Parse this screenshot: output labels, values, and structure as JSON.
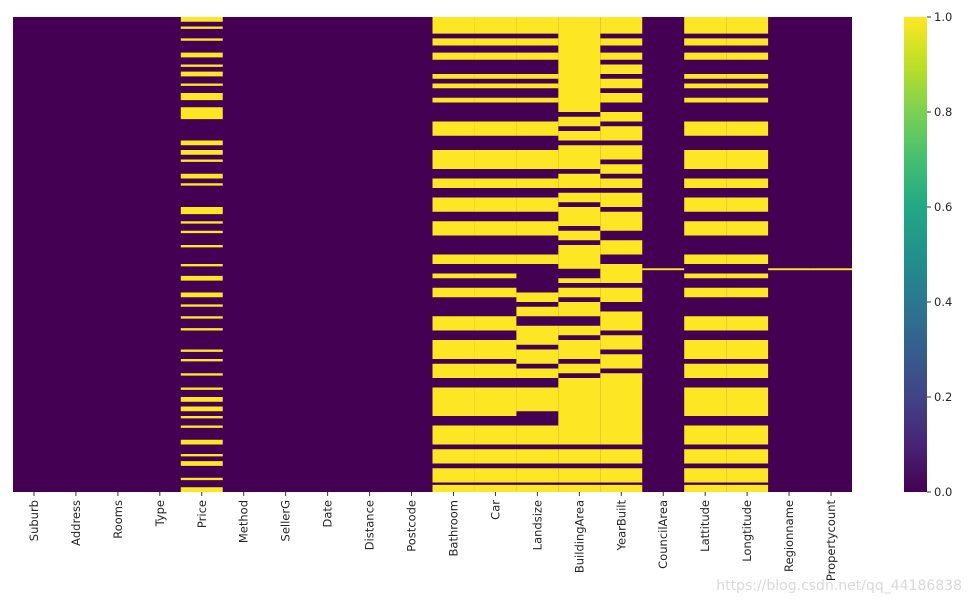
{
  "chart_data": {
    "type": "heatmap",
    "title": "",
    "xlabel": "",
    "ylabel": "",
    "columns": [
      "Suburb",
      "Address",
      "Rooms",
      "Type",
      "Price",
      "Method",
      "SellerG",
      "Date",
      "Distance",
      "Postcode",
      "Bathroom",
      "Car",
      "Landsize",
      "BuildingArea",
      "YearBuilt",
      "CouncilArea",
      "Lattitude",
      "Longtitude",
      "Regionname",
      "Propertycount"
    ],
    "values_meaning": "1 = missing value (yellow), 0 = present (purple); rows = records",
    "missing_bands": {
      "Price": [
        [
          0.0,
          0.01
        ],
        [
          0.02,
          0.025
        ],
        [
          0.045,
          0.05
        ],
        [
          0.075,
          0.085
        ],
        [
          0.1,
          0.105
        ],
        [
          0.115,
          0.125
        ],
        [
          0.14,
          0.145
        ],
        [
          0.16,
          0.175
        ],
        [
          0.19,
          0.2
        ],
        [
          0.2,
          0.215
        ],
        [
          0.26,
          0.27
        ],
        [
          0.28,
          0.29
        ],
        [
          0.3,
          0.305
        ],
        [
          0.33,
          0.34
        ],
        [
          0.35,
          0.355
        ],
        [
          0.4,
          0.415
        ],
        [
          0.43,
          0.435
        ],
        [
          0.45,
          0.455
        ],
        [
          0.48,
          0.485
        ],
        [
          0.52,
          0.525
        ],
        [
          0.545,
          0.555
        ],
        [
          0.58,
          0.59
        ],
        [
          0.605,
          0.61
        ],
        [
          0.63,
          0.635
        ],
        [
          0.655,
          0.66
        ],
        [
          0.7,
          0.705
        ],
        [
          0.72,
          0.725
        ],
        [
          0.75,
          0.755
        ],
        [
          0.78,
          0.785
        ],
        [
          0.8,
          0.81
        ],
        [
          0.82,
          0.83
        ],
        [
          0.84,
          0.845
        ],
        [
          0.86,
          0.865
        ],
        [
          0.89,
          0.9
        ],
        [
          0.92,
          0.925
        ],
        [
          0.935,
          0.945
        ],
        [
          0.97,
          0.975
        ],
        [
          0.99,
          1.0
        ]
      ],
      "Bathroom": [
        [
          0.0,
          0.035
        ],
        [
          0.045,
          0.06
        ],
        [
          0.075,
          0.09
        ],
        [
          0.12,
          0.13
        ],
        [
          0.14,
          0.15
        ],
        [
          0.17,
          0.18
        ],
        [
          0.22,
          0.25
        ],
        [
          0.28,
          0.32
        ],
        [
          0.34,
          0.36
        ],
        [
          0.38,
          0.41
        ],
        [
          0.43,
          0.46
        ],
        [
          0.5,
          0.52
        ],
        [
          0.54,
          0.55
        ],
        [
          0.57,
          0.59
        ],
        [
          0.63,
          0.66
        ],
        [
          0.68,
          0.72
        ],
        [
          0.73,
          0.76
        ],
        [
          0.78,
          0.84
        ],
        [
          0.86,
          0.9
        ],
        [
          0.91,
          0.94
        ],
        [
          0.95,
          0.98
        ],
        [
          0.985,
          1.0
        ]
      ],
      "Car": [
        [
          0.0,
          0.035
        ],
        [
          0.045,
          0.06
        ],
        [
          0.075,
          0.09
        ],
        [
          0.12,
          0.13
        ],
        [
          0.14,
          0.15
        ],
        [
          0.17,
          0.18
        ],
        [
          0.22,
          0.25
        ],
        [
          0.28,
          0.32
        ],
        [
          0.34,
          0.36
        ],
        [
          0.38,
          0.41
        ],
        [
          0.43,
          0.46
        ],
        [
          0.5,
          0.52
        ],
        [
          0.54,
          0.55
        ],
        [
          0.57,
          0.59
        ],
        [
          0.63,
          0.66
        ],
        [
          0.68,
          0.72
        ],
        [
          0.73,
          0.76
        ],
        [
          0.78,
          0.84
        ],
        [
          0.86,
          0.9
        ],
        [
          0.91,
          0.94
        ],
        [
          0.95,
          0.98
        ],
        [
          0.985,
          1.0
        ]
      ],
      "Landsize": [
        [
          0.0,
          0.035
        ],
        [
          0.045,
          0.06
        ],
        [
          0.075,
          0.09
        ],
        [
          0.12,
          0.13
        ],
        [
          0.14,
          0.15
        ],
        [
          0.17,
          0.18
        ],
        [
          0.22,
          0.25
        ],
        [
          0.28,
          0.32
        ],
        [
          0.34,
          0.36
        ],
        [
          0.38,
          0.41
        ],
        [
          0.43,
          0.46
        ],
        [
          0.5,
          0.52
        ],
        [
          0.58,
          0.6
        ],
        [
          0.61,
          0.63
        ],
        [
          0.65,
          0.69
        ],
        [
          0.7,
          0.73
        ],
        [
          0.74,
          0.76
        ],
        [
          0.78,
          0.83
        ],
        [
          0.86,
          0.9
        ],
        [
          0.91,
          0.94
        ],
        [
          0.95,
          0.98
        ],
        [
          0.985,
          1.0
        ]
      ],
      "BuildingArea": [
        [
          0.0,
          0.2
        ],
        [
          0.21,
          0.23
        ],
        [
          0.24,
          0.26
        ],
        [
          0.27,
          0.32
        ],
        [
          0.33,
          0.36
        ],
        [
          0.37,
          0.39
        ],
        [
          0.4,
          0.44
        ],
        [
          0.45,
          0.47
        ],
        [
          0.48,
          0.53
        ],
        [
          0.55,
          0.56
        ],
        [
          0.57,
          0.59
        ],
        [
          0.6,
          0.63
        ],
        [
          0.65,
          0.67
        ],
        [
          0.68,
          0.72
        ],
        [
          0.73,
          0.75
        ],
        [
          0.76,
          0.9
        ],
        [
          0.91,
          0.94
        ],
        [
          0.95,
          0.98
        ],
        [
          0.985,
          1.0
        ]
      ],
      "YearBuilt": [
        [
          0.0,
          0.035
        ],
        [
          0.045,
          0.06
        ],
        [
          0.075,
          0.09
        ],
        [
          0.1,
          0.12
        ],
        [
          0.13,
          0.15
        ],
        [
          0.16,
          0.18
        ],
        [
          0.2,
          0.22
        ],
        [
          0.23,
          0.26
        ],
        [
          0.27,
          0.3
        ],
        [
          0.31,
          0.33
        ],
        [
          0.34,
          0.36
        ],
        [
          0.37,
          0.4
        ],
        [
          0.41,
          0.45
        ],
        [
          0.47,
          0.5
        ],
        [
          0.52,
          0.56
        ],
        [
          0.57,
          0.6
        ],
        [
          0.62,
          0.66
        ],
        [
          0.67,
          0.7
        ],
        [
          0.71,
          0.74
        ],
        [
          0.75,
          0.9
        ],
        [
          0.91,
          0.94
        ],
        [
          0.95,
          0.98
        ],
        [
          0.985,
          1.0
        ]
      ],
      "CouncilArea": [
        [
          0.529,
          0.533
        ]
      ],
      "Lattitude": [
        [
          0.0,
          0.035
        ],
        [
          0.045,
          0.06
        ],
        [
          0.075,
          0.09
        ],
        [
          0.12,
          0.13
        ],
        [
          0.14,
          0.15
        ],
        [
          0.17,
          0.18
        ],
        [
          0.22,
          0.25
        ],
        [
          0.28,
          0.32
        ],
        [
          0.34,
          0.36
        ],
        [
          0.38,
          0.41
        ],
        [
          0.43,
          0.46
        ],
        [
          0.5,
          0.52
        ],
        [
          0.54,
          0.55
        ],
        [
          0.57,
          0.59
        ],
        [
          0.63,
          0.66
        ],
        [
          0.68,
          0.72
        ],
        [
          0.73,
          0.76
        ],
        [
          0.78,
          0.84
        ],
        [
          0.86,
          0.9
        ],
        [
          0.91,
          0.94
        ],
        [
          0.95,
          0.98
        ],
        [
          0.985,
          1.0
        ]
      ],
      "Longtitude": [
        [
          0.0,
          0.035
        ],
        [
          0.045,
          0.06
        ],
        [
          0.075,
          0.09
        ],
        [
          0.12,
          0.13
        ],
        [
          0.14,
          0.15
        ],
        [
          0.17,
          0.18
        ],
        [
          0.22,
          0.25
        ],
        [
          0.28,
          0.32
        ],
        [
          0.34,
          0.36
        ],
        [
          0.38,
          0.41
        ],
        [
          0.43,
          0.46
        ],
        [
          0.5,
          0.52
        ],
        [
          0.54,
          0.55
        ],
        [
          0.57,
          0.59
        ],
        [
          0.63,
          0.66
        ],
        [
          0.68,
          0.72
        ],
        [
          0.73,
          0.76
        ],
        [
          0.78,
          0.84
        ],
        [
          0.86,
          0.9
        ],
        [
          0.91,
          0.94
        ],
        [
          0.95,
          0.98
        ],
        [
          0.985,
          1.0
        ]
      ],
      "Regionname": [
        [
          0.529,
          0.533
        ]
      ],
      "Propertycount": [
        [
          0.529,
          0.533
        ]
      ]
    },
    "colorbar": {
      "range": [
        0.0,
        1.0
      ],
      "ticks": [
        "0.0",
        "0.2",
        "0.4",
        "0.6",
        "0.8",
        "1.0"
      ],
      "colormap": "viridis"
    },
    "colors": {
      "present": "#440154",
      "missing": "#fde725"
    }
  },
  "watermark": "https://blog.csdn.net/qq_44186838"
}
